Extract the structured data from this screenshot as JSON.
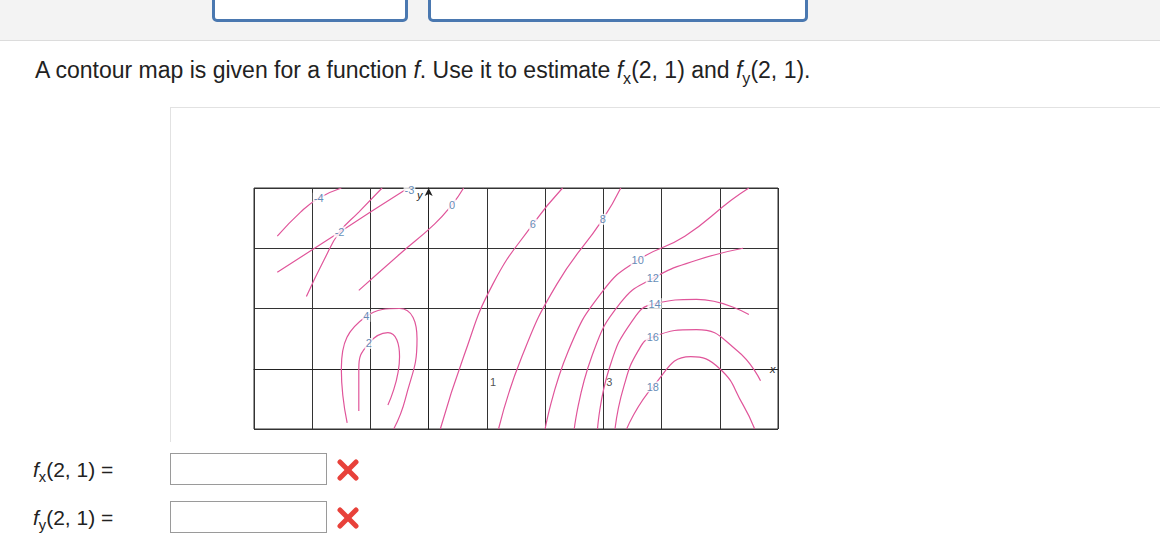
{
  "question": [
    {
      "t": "A contour map is given for a function "
    },
    {
      "t": "f",
      "italic": true
    },
    {
      "t": ". Use it to estimate "
    },
    {
      "t": "f",
      "italic": true
    },
    {
      "t": "x",
      "sub": true
    },
    {
      "t": "(2, 1) and "
    },
    {
      "t": "f",
      "italic": true
    },
    {
      "t": "y",
      "sub": true
    },
    {
      "t": "(2, 1)."
    }
  ],
  "chart_data": {
    "type": "contour",
    "xlabel": "x",
    "ylabel": "y",
    "xlim": [
      -3,
      6
    ],
    "ylim": [
      -1,
      3
    ],
    "xticks": [
      -3,
      -2,
      -1,
      0,
      1,
      2,
      3,
      4,
      5,
      6
    ],
    "yticks": [
      -1,
      0,
      1,
      2,
      3
    ],
    "grid": true,
    "tick_labels": false,
    "color": "#e0559a",
    "contours": [
      {
        "level": -4,
        "label_at": [
          -1.89,
          2.83
        ],
        "points": [
          [
            -2.6,
            2.2
          ],
          [
            -2.2,
            2.6
          ],
          [
            -1.89,
            2.83
          ],
          [
            -1.5,
            3.0
          ]
        ]
      },
      {
        "level": -3,
        "label_at": [
          -0.33,
          2.97
        ],
        "points": [
          [
            -2.6,
            1.6
          ],
          [
            -1.8,
            2.1
          ],
          [
            -1.0,
            2.6
          ],
          [
            -0.4,
            2.97
          ]
        ]
      },
      {
        "level": -2,
        "label_at": [
          -1.53,
          2.27
        ],
        "points": [
          [
            -2.1,
            1.2
          ],
          [
            -1.8,
            1.8
          ],
          [
            -1.53,
            2.27
          ],
          [
            -1.2,
            2.6
          ],
          [
            -0.8,
            3.0
          ]
        ]
      },
      {
        "level": 0,
        "label_at": [
          0.4,
          2.72
        ],
        "points": [
          [
            -1.2,
            1.3
          ],
          [
            -0.5,
            1.9
          ],
          [
            0.1,
            2.4
          ],
          [
            0.4,
            2.72
          ],
          [
            0.6,
            3.0
          ]
        ]
      },
      {
        "level": 4,
        "label_at": [
          -1.07,
          0.87
        ],
        "points": [
          [
            -1.4,
            -0.9
          ],
          [
            -1.5,
            0.0
          ],
          [
            -1.07,
            0.87
          ],
          [
            -0.5,
            1.0
          ],
          [
            -0.2,
            0.5
          ],
          [
            -0.4,
            -0.5
          ],
          [
            -0.6,
            -1.0
          ]
        ]
      },
      {
        "level": 2,
        "label_at": [
          -1.03,
          0.42
        ],
        "points": [
          [
            -1.2,
            -0.7
          ],
          [
            -1.2,
            0.0
          ],
          [
            -1.03,
            0.42
          ],
          [
            -0.7,
            0.6
          ],
          [
            -0.5,
            0.2
          ],
          [
            -0.7,
            -0.6
          ]
        ]
      },
      {
        "level": 6,
        "label_at": [
          1.79,
          2.4
        ],
        "points": [
          [
            0.2,
            -1.0
          ],
          [
            0.6,
            0.2
          ],
          [
            1.1,
            1.4
          ],
          [
            1.79,
            2.4
          ],
          [
            2.3,
            3.0
          ]
        ]
      },
      {
        "level": 8,
        "label_at": [
          2.99,
          2.48
        ],
        "points": [
          [
            1.2,
            -1.0
          ],
          [
            1.6,
            0.2
          ],
          [
            2.2,
            1.4
          ],
          [
            2.99,
            2.48
          ],
          [
            3.3,
            3.0
          ]
        ]
      },
      {
        "level": 10,
        "label_at": [
          3.59,
          1.8
        ],
        "points": [
          [
            2.0,
            -1.0
          ],
          [
            2.4,
            0.3
          ],
          [
            3.0,
            1.3
          ],
          [
            3.59,
            1.8
          ],
          [
            4.4,
            2.2
          ],
          [
            5.2,
            2.8
          ],
          [
            5.5,
            3.0
          ]
        ]
      },
      {
        "level": 12,
        "label_at": [
          3.85,
          1.5
        ],
        "points": [
          [
            2.5,
            -1.0
          ],
          [
            2.8,
            0.2
          ],
          [
            3.3,
            1.1
          ],
          [
            3.85,
            1.5
          ],
          [
            4.6,
            1.8
          ],
          [
            5.4,
            2.0
          ]
        ]
      },
      {
        "level": 14,
        "label_at": [
          3.88,
          1.08
        ],
        "points": [
          [
            2.9,
            -1.0
          ],
          [
            3.1,
            0.0
          ],
          [
            3.5,
            0.8
          ],
          [
            3.88,
            1.08
          ],
          [
            4.6,
            1.15
          ],
          [
            5.5,
            0.9
          ]
        ]
      },
      {
        "level": 16,
        "label_at": [
          3.85,
          0.53
        ],
        "points": [
          [
            3.2,
            -1.0
          ],
          [
            3.35,
            -0.3
          ],
          [
            3.6,
            0.3
          ],
          [
            3.85,
            0.53
          ],
          [
            4.6,
            0.65
          ],
          [
            5.3,
            0.3
          ],
          [
            5.7,
            -0.2
          ]
        ]
      },
      {
        "level": 18,
        "label_at": [
          3.85,
          -0.3
        ],
        "points": [
          [
            3.4,
            -1.0
          ],
          [
            3.85,
            -0.3
          ],
          [
            4.5,
            0.2
          ],
          [
            5.0,
            0.0
          ],
          [
            5.4,
            -0.6
          ],
          [
            5.6,
            -1.0
          ]
        ]
      }
    ],
    "annotations": [
      {
        "text": "1",
        "x": 1,
        "y": 0
      },
      {
        "text": "3",
        "x": 3,
        "y": 0
      }
    ]
  },
  "answers": [
    [
      {
        "t": "f",
        "italic": true
      },
      {
        "t": "x",
        "sub": true
      },
      {
        "t": "(2, 1) ="
      }
    ],
    [
      {
        "t": "f",
        "italic": true
      },
      {
        "t": "y",
        "sub": true
      },
      {
        "t": "(2, 1) ="
      }
    ]
  ]
}
